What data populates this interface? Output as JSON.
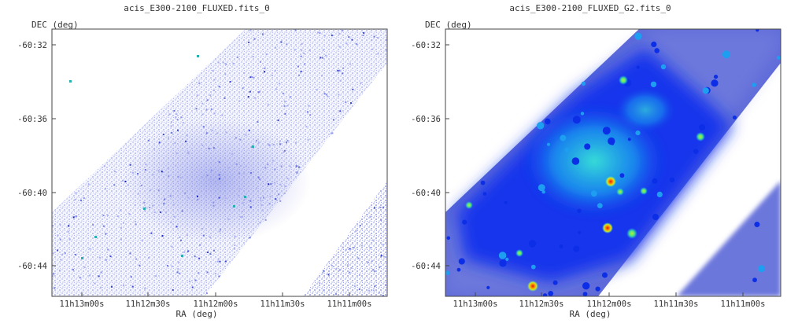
{
  "chart_data": [
    {
      "type": "heatmap",
      "title": "acis_E300-2100_FLUXED.fits_0",
      "xlabel": "RA (deg)",
      "ylabel": "DEC (deg)",
      "x_ticks": [
        "11h13m00s",
        "11h12m30s",
        "11h12m00s",
        "11h11m30s",
        "11h11m00s"
      ],
      "y_ticks": [
        "-60:32",
        "-60:36",
        "-60:40",
        "-60:44"
      ],
      "rendering": "raw counts, sparse speckled pixels",
      "colormap": [
        "#ffffff",
        "#c8ccf4",
        "#8a90e8",
        "#2f3ad8",
        "#0000c8"
      ],
      "grid": false
    },
    {
      "type": "heatmap",
      "title": "acis_E300-2100_FLUXED_G2.fits_0",
      "xlabel": "RA (deg)",
      "ylabel": "DEC (deg)",
      "x_ticks": [
        "11h13m00s",
        "11h12m30s",
        "11h12m00s",
        "11h11m30s",
        "11h11m00s"
      ],
      "y_ticks": [
        "-60:32",
        "-60:36",
        "-60:40",
        "-60:44"
      ],
      "rendering": "gaussian smoothed (sigma 2)",
      "colormap": [
        "#ffffff",
        "#5a66d8",
        "#1436ee",
        "#22b0e8",
        "#4af0b0",
        "#d0e820",
        "#ff8c00",
        "#e01010"
      ],
      "grid": false
    }
  ]
}
